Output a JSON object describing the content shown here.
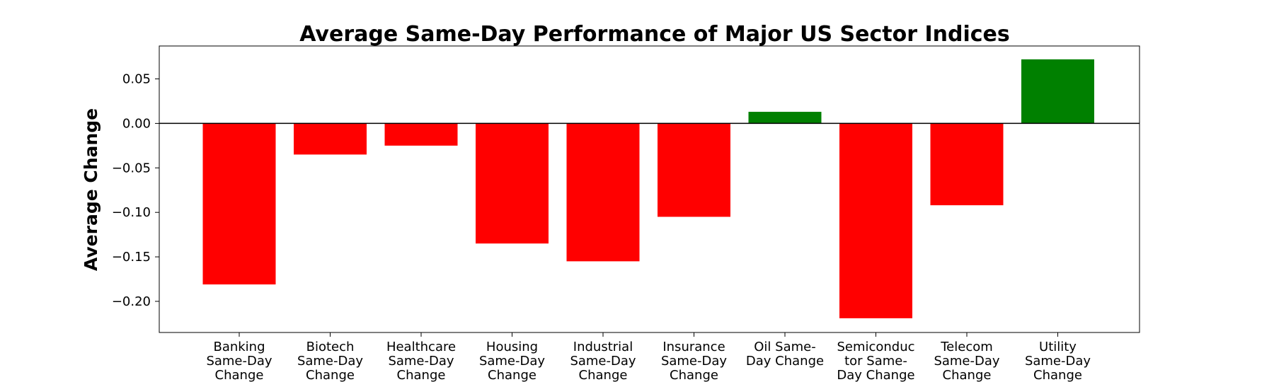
{
  "chart_data": {
    "type": "bar",
    "title": "Average Same-Day Performance of Major US Sector Indices",
    "xlabel": "",
    "ylabel": "Average Change",
    "ylim": [
      -0.235,
      0.087
    ],
    "yticks": [
      "0.05",
      "0.00",
      "−0.05",
      "−0.10",
      "−0.15",
      "−0.20"
    ],
    "ytick_values": [
      0.05,
      0.0,
      -0.05,
      -0.1,
      -0.15,
      -0.2
    ],
    "categories": [
      [
        "Banking",
        "Same-Day",
        "Change"
      ],
      [
        "Biotech",
        "Same-Day",
        "Change"
      ],
      [
        "Healthcare",
        "Same-Day",
        "Change"
      ],
      [
        "Housing",
        "Same-Day",
        "Change"
      ],
      [
        "Industrial",
        "Same-Day",
        "Change"
      ],
      [
        "Insurance",
        "Same-Day",
        "Change"
      ],
      [
        "Oil Same-",
        "Day Change"
      ],
      [
        "Semiconduc",
        "tor Same-",
        "Day Change"
      ],
      [
        "Telecom",
        "Same-Day",
        "Change"
      ],
      [
        "Utility",
        "Same-Day",
        "Change"
      ]
    ],
    "values": [
      -0.181,
      -0.035,
      -0.025,
      -0.135,
      -0.155,
      -0.105,
      0.013,
      -0.219,
      -0.092,
      0.072
    ],
    "colors": {
      "negative": "#ff0000",
      "positive": "#008000"
    },
    "zero_line": true,
    "grid": false
  }
}
